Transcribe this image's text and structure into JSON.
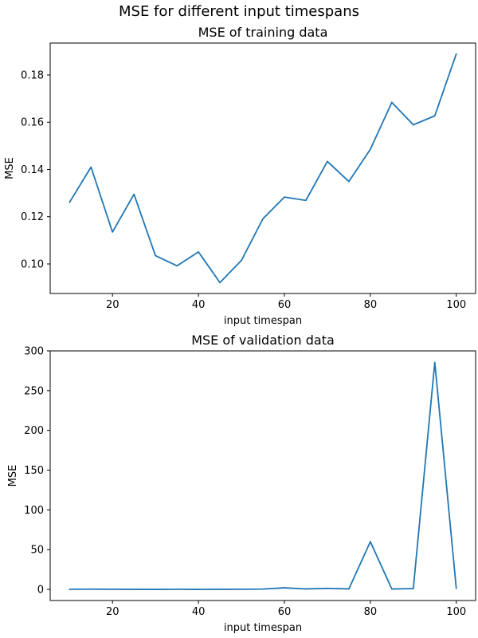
{
  "suptitle": "MSE for different input timespans",
  "chart_data": [
    {
      "type": "line",
      "title": "MSE of training data",
      "xlabel": "input timespan",
      "ylabel": "MSE",
      "xlim": [
        5.5,
        104.5
      ],
      "ylim": [
        0.0875,
        0.1935
      ],
      "xticks": [
        20,
        40,
        60,
        80,
        100
      ],
      "xtick_labels": [
        "20",
        "40",
        "60",
        "80",
        "100"
      ],
      "yticks": [
        0.1,
        0.12,
        0.14,
        0.16,
        0.18
      ],
      "ytick_labels": [
        "0.10",
        "0.12",
        "0.14",
        "0.16",
        "0.18"
      ],
      "grid": false,
      "color": "#1f77b4",
      "x": [
        10,
        15,
        20,
        25,
        30,
        35,
        40,
        45,
        50,
        55,
        60,
        65,
        70,
        75,
        80,
        85,
        90,
        95,
        100
      ],
      "y": [
        0.1261,
        0.141,
        0.1135,
        0.1295,
        0.1035,
        0.0992,
        0.1051,
        0.0921,
        0.1015,
        0.1191,
        0.1283,
        0.1269,
        0.1434,
        0.1349,
        0.1485,
        0.1684,
        0.1589,
        0.1627,
        0.1889
      ]
    },
    {
      "type": "line",
      "title": "MSE of validation data",
      "xlabel": "input timespan",
      "ylabel": "MSE",
      "xlim": [
        5.5,
        104.5
      ],
      "ylim": [
        -14,
        300
      ],
      "xticks": [
        20,
        40,
        60,
        80,
        100
      ],
      "xtick_labels": [
        "20",
        "40",
        "60",
        "80",
        "100"
      ],
      "yticks": [
        0,
        50,
        100,
        150,
        200,
        250,
        300
      ],
      "ytick_labels": [
        "0",
        "50",
        "100",
        "150",
        "200",
        "250",
        "300"
      ],
      "grid": false,
      "color": "#1f77b4",
      "x": [
        10,
        15,
        20,
        25,
        30,
        35,
        40,
        45,
        50,
        55,
        60,
        65,
        70,
        75,
        80,
        85,
        90,
        95,
        100
      ],
      "y": [
        0.2,
        0.3,
        0.2,
        0.1,
        0.0,
        0.2,
        0.0,
        0.1,
        0.2,
        0.4,
        2.0,
        0.6,
        1.3,
        0.6,
        60.0,
        0.5,
        1.0,
        285.5,
        1.2
      ]
    }
  ]
}
